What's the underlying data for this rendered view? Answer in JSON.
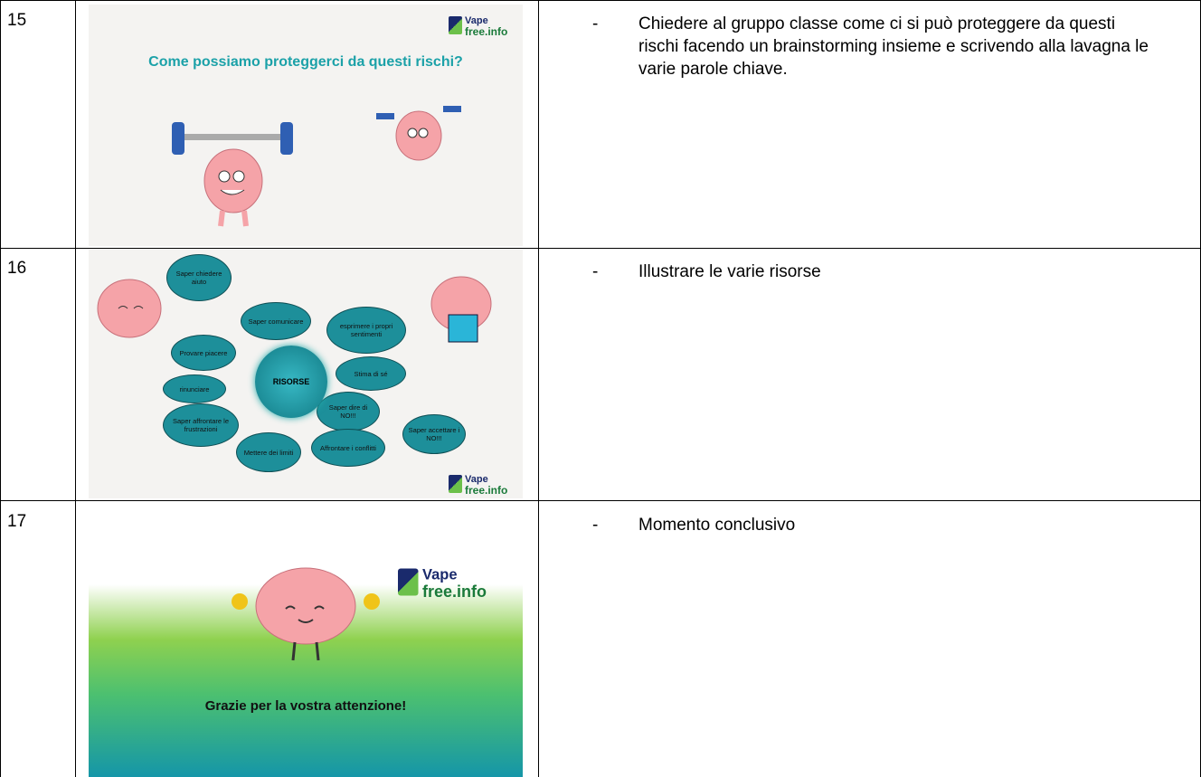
{
  "table": {
    "rows": [
      {
        "number": "15",
        "slide": {
          "logo": [
            "Vape",
            "free.info"
          ],
          "title": "Come possiamo proteggerci da questi rischi?"
        },
        "bullet": "-",
        "note": "Chiedere al gruppo classe come ci si può proteggere da questi rischi facendo un brainstorming insieme e scrivendo alla lavagna le varie parole chiave."
      },
      {
        "number": "16",
        "slide": {
          "logo": [
            "Vape",
            "free.info"
          ],
          "center": "RISORSE",
          "bubbles": [
            "Saper chiedere aiuto",
            "Saper comunicare",
            "esprimere i propri sentimenti",
            "Stima di sé",
            "Saper dire di NO!!!",
            "Saper accettare i NO!!!",
            "Affrontare i conflitti",
            "Mettere dei limiti",
            "Saper affrontare le frustrazioni",
            "rinunciare",
            "Provare piacere"
          ]
        },
        "bullet": "-",
        "note": "Illustrare le varie risorse"
      },
      {
        "number": "17",
        "slide": {
          "logo": [
            "Vape",
            "free.info"
          ],
          "title": "Grazie per la vostra attenzione!"
        },
        "bullet": "-",
        "note": "Momento conclusivo"
      }
    ]
  }
}
